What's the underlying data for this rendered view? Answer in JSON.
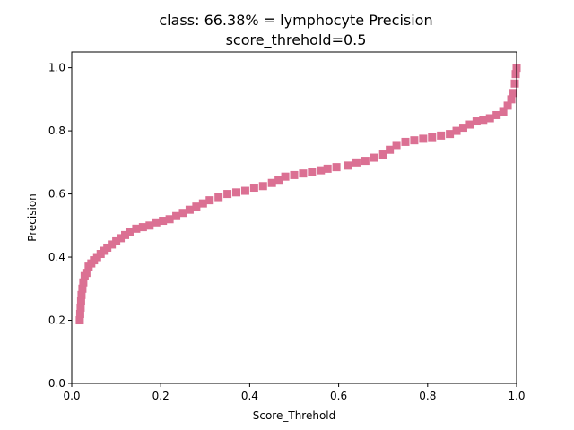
{
  "chart_data": {
    "type": "scatter",
    "title_line1": "class: 66.38% = lymphocyte Precision",
    "title_line2": "score_threhold=0.5",
    "xlabel": "Score_Threhold",
    "ylabel": "Precision",
    "xlim": [
      0.0,
      1.0
    ],
    "ylim": [
      0.0,
      1.05
    ],
    "xticks": [
      "0.0",
      "0.2",
      "0.4",
      "0.6",
      "0.8",
      "1.0"
    ],
    "yticks": [
      "0.0",
      "0.2",
      "0.4",
      "0.6",
      "0.8",
      "1.0"
    ],
    "grid": false,
    "marker_color": "#db7093",
    "marker": "square",
    "points": [
      [
        0.018,
        0.2
      ],
      [
        0.019,
        0.22
      ],
      [
        0.02,
        0.24
      ],
      [
        0.021,
        0.26
      ],
      [
        0.022,
        0.28
      ],
      [
        0.024,
        0.3
      ],
      [
        0.026,
        0.32
      ],
      [
        0.029,
        0.34
      ],
      [
        0.033,
        0.35
      ],
      [
        0.038,
        0.37
      ],
      [
        0.044,
        0.38
      ],
      [
        0.05,
        0.39
      ],
      [
        0.057,
        0.4
      ],
      [
        0.065,
        0.41
      ],
      [
        0.072,
        0.42
      ],
      [
        0.08,
        0.43
      ],
      [
        0.09,
        0.44
      ],
      [
        0.1,
        0.45
      ],
      [
        0.11,
        0.46
      ],
      [
        0.12,
        0.47
      ],
      [
        0.13,
        0.48
      ],
      [
        0.145,
        0.49
      ],
      [
        0.16,
        0.495
      ],
      [
        0.175,
        0.5
      ],
      [
        0.19,
        0.51
      ],
      [
        0.205,
        0.515
      ],
      [
        0.22,
        0.52
      ],
      [
        0.235,
        0.53
      ],
      [
        0.25,
        0.54
      ],
      [
        0.265,
        0.55
      ],
      [
        0.28,
        0.56
      ],
      [
        0.295,
        0.57
      ],
      [
        0.31,
        0.58
      ],
      [
        0.33,
        0.59
      ],
      [
        0.35,
        0.6
      ],
      [
        0.37,
        0.605
      ],
      [
        0.39,
        0.61
      ],
      [
        0.41,
        0.62
      ],
      [
        0.43,
        0.625
      ],
      [
        0.45,
        0.635
      ],
      [
        0.465,
        0.645
      ],
      [
        0.48,
        0.655
      ],
      [
        0.5,
        0.66
      ],
      [
        0.52,
        0.665
      ],
      [
        0.54,
        0.67
      ],
      [
        0.56,
        0.675
      ],
      [
        0.575,
        0.68
      ],
      [
        0.595,
        0.685
      ],
      [
        0.62,
        0.69
      ],
      [
        0.64,
        0.7
      ],
      [
        0.66,
        0.705
      ],
      [
        0.68,
        0.715
      ],
      [
        0.7,
        0.725
      ],
      [
        0.715,
        0.74
      ],
      [
        0.73,
        0.755
      ],
      [
        0.75,
        0.765
      ],
      [
        0.77,
        0.77
      ],
      [
        0.79,
        0.775
      ],
      [
        0.81,
        0.78
      ],
      [
        0.83,
        0.785
      ],
      [
        0.85,
        0.79
      ],
      [
        0.865,
        0.8
      ],
      [
        0.88,
        0.81
      ],
      [
        0.895,
        0.82
      ],
      [
        0.91,
        0.83
      ],
      [
        0.925,
        0.835
      ],
      [
        0.94,
        0.84
      ],
      [
        0.955,
        0.85
      ],
      [
        0.97,
        0.86
      ],
      [
        0.98,
        0.88
      ],
      [
        0.988,
        0.9
      ],
      [
        0.993,
        0.92
      ],
      [
        0.996,
        0.95
      ],
      [
        0.998,
        0.98
      ],
      [
        1.0,
        1.0
      ]
    ]
  }
}
